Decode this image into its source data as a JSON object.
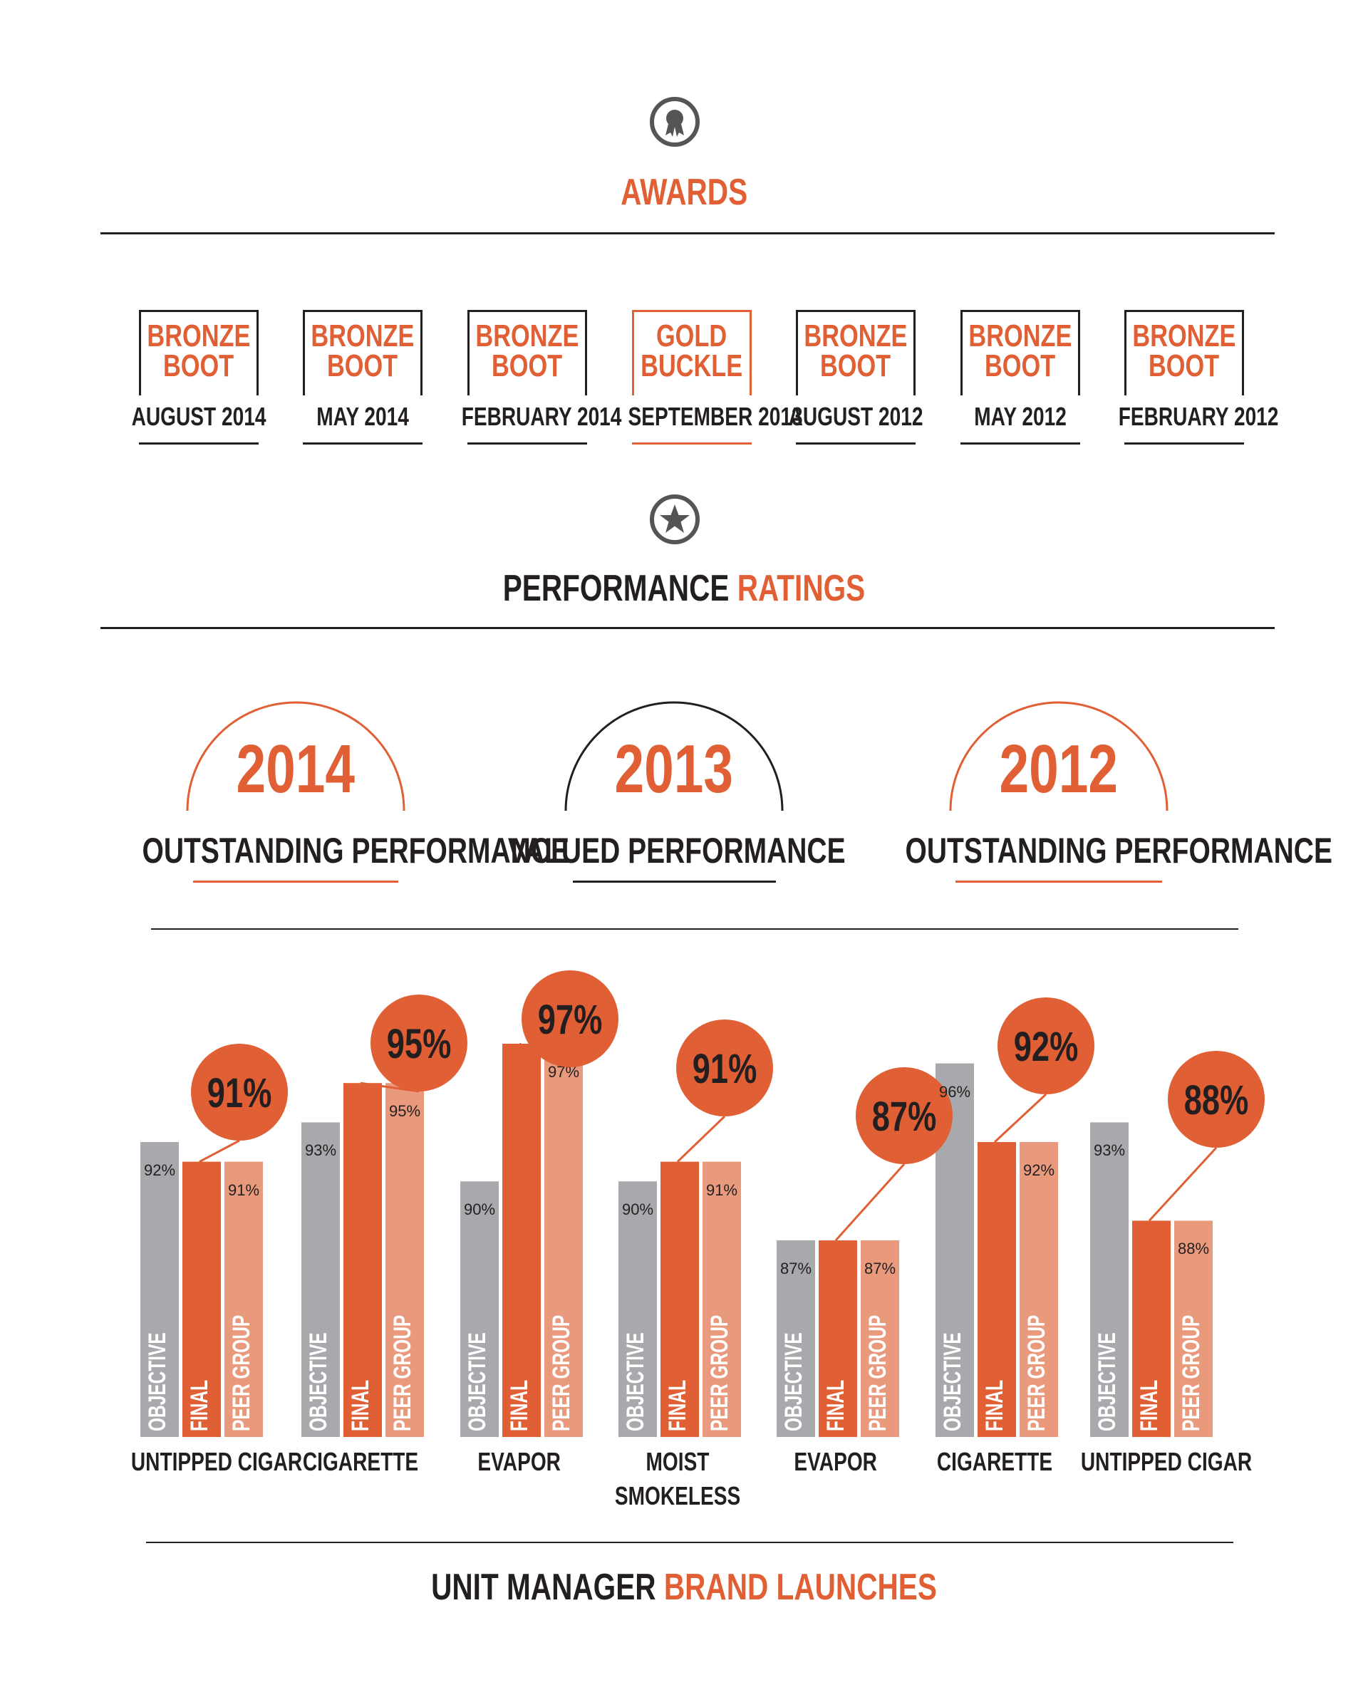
{
  "awards_section": {
    "title": "AWARDS",
    "icon": "award-ribbon-icon",
    "items": [
      {
        "line1": "BRONZE",
        "line2": "BOOT",
        "date": "AUGUST 2014",
        "highlight": false
      },
      {
        "line1": "BRONZE",
        "line2": "BOOT",
        "date": "MAY  2014",
        "highlight": false
      },
      {
        "line1": "BRONZE",
        "line2": "BOOT",
        "date": "FEBRUARY 2014",
        "highlight": false
      },
      {
        "line1": "GOLD",
        "line2": "BUCKLE",
        "date": "SEPTEMBER 2013",
        "highlight": true
      },
      {
        "line1": "BRONZE",
        "line2": "BOOT",
        "date": "AUGUST 2012",
        "highlight": false
      },
      {
        "line1": "BRONZE",
        "line2": "BOOT",
        "date": "MAY  2012",
        "highlight": false
      },
      {
        "line1": "BRONZE",
        "line2": "BOOT",
        "date": "FEBRUARY 2012",
        "highlight": false
      }
    ]
  },
  "ratings_section": {
    "title_part1": "PERFORMANCE",
    "title_part2": "RATINGS",
    "icon": "star-icon",
    "items": [
      {
        "year": "2014",
        "label": "OUTSTANDING PERFORMANCE",
        "color": "#e05f34"
      },
      {
        "year": "2013",
        "label": "VALUED PERFORMANCE",
        "color": "#231f20"
      },
      {
        "year": "2012",
        "label": "OUTSTANDING PERFORMANCE",
        "color": "#e05f34"
      }
    ]
  },
  "launches_section": {
    "title_part1": "UNIT MANAGER",
    "title_part2": "BRAND LAUNCHES"
  },
  "colors": {
    "accent": "#e05f34",
    "peer": "#ea9a7c",
    "objective": "#a7a9ac",
    "text": "#231f20"
  },
  "chart_data": {
    "type": "bar",
    "categories": [
      "UNTIPPED CIGAR",
      "CIGARETTE",
      "EVAPOR",
      "MOIST SMOKELESS",
      "EVAPOR",
      "CIGARETTE",
      "UNTIPPED CIGAR"
    ],
    "category_lines": [
      [
        "UNTIPPED CIGAR"
      ],
      [
        "CIGARETTE"
      ],
      [
        "EVAPOR"
      ],
      [
        "MOIST",
        "SMOKELESS"
      ],
      [
        "EVAPOR"
      ],
      [
        "CIGARETTE"
      ],
      [
        "UNTIPPED CIGAR"
      ]
    ],
    "series": [
      {
        "name": "OBJECTIVE",
        "values": [
          92,
          93,
          90,
          90,
          87,
          96,
          93
        ]
      },
      {
        "name": "FINAL",
        "values": [
          91,
          95,
          97,
          91,
          87,
          92,
          88
        ]
      },
      {
        "name": "PEER GROUP",
        "values": [
          91,
          95,
          97,
          91,
          87,
          92,
          88
        ]
      }
    ],
    "value_labels": {
      "objective": [
        "92%",
        "93%",
        "90%",
        "90%",
        "87%",
        "96%",
        "93%"
      ],
      "peer": [
        "91%",
        "95%",
        "97%",
        "91%",
        "87%",
        "92%",
        "88%"
      ],
      "final_bubbles": [
        "91%",
        "95%",
        "97%",
        "91%",
        "87%",
        "92%",
        "88%"
      ]
    },
    "title": "",
    "xlabel": "",
    "ylabel": "",
    "grid": false,
    "legend": "none"
  }
}
